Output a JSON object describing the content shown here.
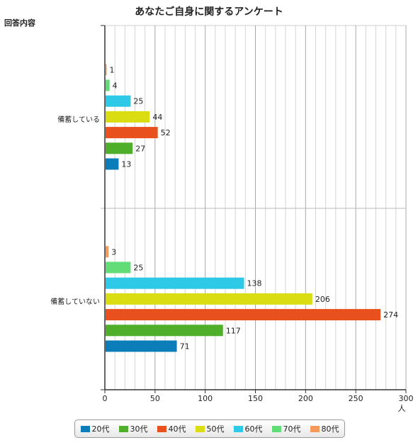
{
  "chart_data": {
    "type": "bar",
    "orientation": "horizontal",
    "title": "あなたご自身に関するアンケート",
    "ylabel": "回答内容",
    "xlabel": "人",
    "xlim": [
      0,
      300
    ],
    "xticks": [
      0,
      50,
      100,
      150,
      200,
      250,
      300
    ],
    "grid": true,
    "legend_position": "bottom",
    "categories": [
      "備蓄している",
      "備蓄していない"
    ],
    "category_labels": [
      "備蓄している",
      "備蓄していない"
    ],
    "series": [
      {
        "name": "20代",
        "color": "#0b7db8",
        "values": [
          13,
          71
        ]
      },
      {
        "name": "30代",
        "color": "#4faf2b",
        "values": [
          27,
          117
        ]
      },
      {
        "name": "40代",
        "color": "#e8501e",
        "values": [
          52,
          274
        ]
      },
      {
        "name": "50代",
        "color": "#d9dd12",
        "values": [
          44,
          206
        ]
      },
      {
        "name": "60代",
        "color": "#2dc9e6",
        "values": [
          25,
          138
        ]
      },
      {
        "name": "70代",
        "color": "#62dc76",
        "values": [
          4,
          25
        ]
      },
      {
        "name": "80代",
        "color": "#f59a5a",
        "values": [
          1,
          3
        ]
      }
    ]
  }
}
